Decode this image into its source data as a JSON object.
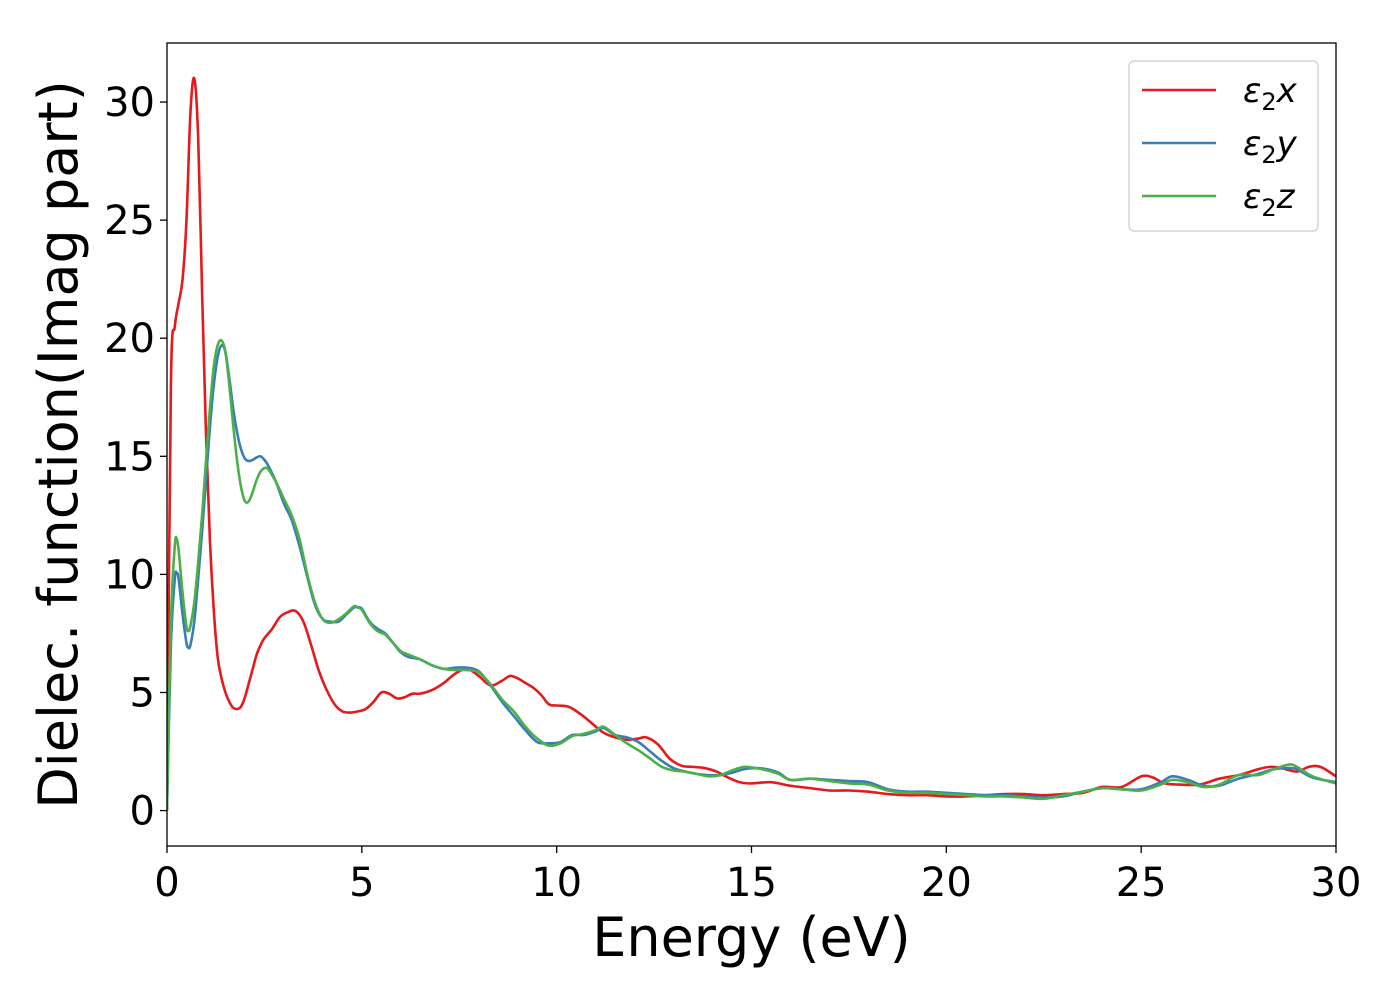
{
  "chart_data": {
    "type": "line",
    "xlabel": "Energy (eV)",
    "ylabel": "Dielec. function(Imag part)",
    "xlim": [
      0,
      30
    ],
    "ylim": [
      -1.5,
      32.5
    ],
    "xticks": [
      0,
      5,
      10,
      15,
      20,
      25,
      30
    ],
    "yticks": [
      0,
      5,
      10,
      15,
      20,
      25,
      30
    ],
    "grid": false,
    "legend_position": "top-right",
    "series": [
      {
        "name": "ε2x",
        "legend": {
          "base": "ε",
          "sub": "2",
          "suffix": "x"
        },
        "color": "#e41a1c",
        "x": [
          0,
          0.1,
          0.2,
          0.3,
          0.4,
          0.5,
          0.6,
          0.7,
          0.8,
          0.9,
          1.0,
          1.1,
          1.2,
          1.3,
          1.4,
          1.5,
          1.6,
          1.7,
          1.8,
          1.9,
          2.0,
          2.1,
          2.2,
          2.3,
          2.4,
          2.5,
          2.7,
          2.9,
          3.1,
          3.3,
          3.5,
          3.7,
          3.9,
          4.1,
          4.3,
          4.5,
          4.7,
          4.9,
          5.1,
          5.3,
          5.5,
          5.7,
          5.9,
          6.1,
          6.3,
          6.5,
          6.8,
          7.1,
          7.4,
          7.7,
          8.0,
          8.3,
          8.6,
          8.8,
          9.0,
          9.2,
          9.4,
          9.6,
          9.8,
          10.0,
          10.3,
          10.6,
          10.9,
          11.2,
          11.5,
          11.8,
          12.1,
          12.3,
          12.6,
          12.9,
          13.2,
          13.5,
          13.8,
          14.1,
          14.4,
          14.7,
          15.0,
          15.5,
          16.0,
          16.5,
          17.0,
          17.5,
          18.0,
          18.5,
          19.0,
          19.5,
          20.0,
          20.5,
          21.0,
          21.5,
          22.0,
          22.5,
          23.0,
          23.5,
          24.0,
          24.5,
          25.0,
          25.3,
          25.6,
          26.0,
          26.5,
          27.0,
          27.5,
          28.0,
          28.3,
          28.6,
          29.0,
          29.3,
          29.6,
          30.0
        ],
        "y": [
          0,
          18.0,
          20.5,
          21.5,
          22.5,
          25.0,
          29.5,
          31.0,
          28.5,
          22.0,
          16.0,
          11.5,
          8.5,
          6.5,
          5.6,
          5.0,
          4.6,
          4.35,
          4.3,
          4.4,
          4.8,
          5.4,
          6.0,
          6.6,
          7.0,
          7.3,
          7.7,
          8.2,
          8.4,
          8.45,
          8.0,
          7.0,
          5.9,
          5.1,
          4.5,
          4.2,
          4.15,
          4.2,
          4.3,
          4.6,
          5.0,
          4.95,
          4.75,
          4.8,
          4.95,
          4.95,
          5.1,
          5.4,
          5.8,
          6.0,
          5.7,
          5.3,
          5.5,
          5.7,
          5.6,
          5.4,
          5.2,
          4.9,
          4.5,
          4.45,
          4.4,
          4.1,
          3.7,
          3.3,
          3.1,
          3.0,
          3.05,
          3.1,
          2.8,
          2.2,
          1.9,
          1.85,
          1.8,
          1.65,
          1.4,
          1.2,
          1.15,
          1.2,
          1.05,
          0.95,
          0.85,
          0.85,
          0.8,
          0.7,
          0.65,
          0.65,
          0.6,
          0.6,
          0.65,
          0.7,
          0.7,
          0.65,
          0.7,
          0.75,
          1.0,
          1.0,
          1.45,
          1.4,
          1.15,
          1.1,
          1.1,
          1.35,
          1.5,
          1.75,
          1.85,
          1.8,
          1.65,
          1.85,
          1.85,
          1.45
        ]
      },
      {
        "name": "ε2y",
        "legend": {
          "base": "ε",
          "sub": "2",
          "suffix": "y"
        },
        "color": "#377eb8",
        "x": [
          0,
          0.1,
          0.2,
          0.25,
          0.3,
          0.4,
          0.5,
          0.55,
          0.6,
          0.7,
          0.8,
          0.9,
          1.0,
          1.1,
          1.2,
          1.3,
          1.4,
          1.5,
          1.6,
          1.7,
          1.8,
          1.9,
          2.0,
          2.1,
          2.2,
          2.3,
          2.4,
          2.5,
          2.6,
          2.8,
          3.0,
          3.2,
          3.4,
          3.6,
          3.8,
          4.0,
          4.2,
          4.4,
          4.6,
          4.8,
          4.9,
          5.0,
          5.2,
          5.4,
          5.6,
          5.8,
          6.0,
          6.2,
          6.5,
          6.8,
          7.1,
          7.4,
          7.7,
          8.0,
          8.3,
          8.6,
          8.9,
          9.2,
          9.5,
          9.8,
          10.1,
          10.4,
          10.7,
          11.0,
          11.2,
          11.5,
          11.8,
          12.1,
          12.4,
          12.7,
          13.0,
          13.3,
          13.6,
          13.9,
          14.2,
          14.5,
          14.8,
          15.1,
          15.4,
          15.7,
          16.0,
          16.5,
          17.0,
          17.5,
          18.0,
          18.5,
          19.0,
          19.5,
          20.0,
          20.5,
          21.0,
          21.5,
          22.0,
          22.5,
          23.0,
          23.5,
          24.0,
          24.5,
          25.0,
          25.5,
          25.8,
          26.2,
          26.6,
          27.0,
          27.5,
          28.0,
          28.4,
          28.8,
          29.0,
          29.4,
          30.0
        ],
        "y": [
          0,
          7.0,
          9.8,
          10.05,
          9.8,
          8.3,
          7.1,
          6.9,
          7.0,
          8.0,
          9.8,
          11.8,
          14.0,
          16.2,
          18.0,
          19.2,
          19.7,
          19.4,
          18.3,
          17.0,
          16.0,
          15.3,
          14.9,
          14.8,
          14.85,
          14.95,
          15.0,
          14.85,
          14.6,
          13.9,
          13.0,
          12.3,
          11.2,
          9.9,
          8.7,
          8.1,
          8.0,
          8.0,
          8.3,
          8.6,
          8.6,
          8.55,
          8.0,
          7.7,
          7.5,
          7.1,
          6.7,
          6.5,
          6.4,
          6.15,
          6.0,
          6.05,
          6.05,
          5.9,
          5.3,
          4.6,
          4.0,
          3.4,
          2.9,
          2.85,
          2.9,
          3.2,
          3.2,
          3.35,
          3.5,
          3.2,
          3.1,
          2.9,
          2.5,
          2.1,
          1.8,
          1.65,
          1.55,
          1.5,
          1.5,
          1.6,
          1.75,
          1.8,
          1.75,
          1.6,
          1.3,
          1.35,
          1.3,
          1.25,
          1.2,
          0.9,
          0.8,
          0.8,
          0.75,
          0.7,
          0.65,
          0.65,
          0.6,
          0.55,
          0.6,
          0.8,
          0.95,
          0.9,
          0.9,
          1.2,
          1.45,
          1.3,
          1.05,
          1.05,
          1.35,
          1.55,
          1.75,
          1.8,
          1.75,
          1.4,
          1.2
        ]
      },
      {
        "name": "ε2z",
        "legend": {
          "base": "ε",
          "sub": "2",
          "suffix": "z"
        },
        "color": "#4daf4a",
        "x": [
          0,
          0.1,
          0.2,
          0.25,
          0.3,
          0.4,
          0.5,
          0.55,
          0.6,
          0.7,
          0.8,
          0.9,
          1.0,
          1.1,
          1.2,
          1.3,
          1.4,
          1.5,
          1.6,
          1.7,
          1.8,
          1.9,
          2.0,
          2.1,
          2.2,
          2.3,
          2.4,
          2.5,
          2.6,
          2.8,
          3.0,
          3.2,
          3.4,
          3.6,
          3.8,
          4.0,
          4.2,
          4.4,
          4.6,
          4.8,
          4.9,
          5.0,
          5.2,
          5.4,
          5.6,
          5.8,
          6.0,
          6.2,
          6.5,
          6.8,
          7.1,
          7.4,
          7.7,
          8.0,
          8.3,
          8.6,
          8.9,
          9.2,
          9.5,
          9.8,
          10.1,
          10.4,
          10.7,
          11.0,
          11.2,
          11.5,
          11.8,
          12.1,
          12.4,
          12.7,
          13.0,
          13.3,
          13.6,
          13.9,
          14.2,
          14.5,
          14.8,
          15.1,
          15.4,
          15.7,
          16.0,
          16.5,
          17.0,
          17.5,
          18.0,
          18.5,
          19.0,
          19.5,
          20.0,
          20.5,
          21.0,
          21.5,
          22.0,
          22.5,
          23.0,
          23.5,
          24.0,
          24.5,
          25.0,
          25.5,
          25.8,
          26.2,
          26.6,
          27.0,
          27.5,
          28.0,
          28.4,
          28.8,
          29.0,
          29.4,
          30.0
        ],
        "y": [
          0,
          8.0,
          11.2,
          11.5,
          11.0,
          9.2,
          7.8,
          7.6,
          7.8,
          8.8,
          10.5,
          12.5,
          14.8,
          17.0,
          18.8,
          19.7,
          19.9,
          19.4,
          18.0,
          16.3,
          14.8,
          13.7,
          13.1,
          13.1,
          13.5,
          14.0,
          14.35,
          14.5,
          14.45,
          13.9,
          13.2,
          12.5,
          11.5,
          10.0,
          8.8,
          8.1,
          7.95,
          8.1,
          8.35,
          8.65,
          8.6,
          8.5,
          7.95,
          7.6,
          7.45,
          7.1,
          6.75,
          6.6,
          6.4,
          6.15,
          6.0,
          5.95,
          5.95,
          5.85,
          5.35,
          4.7,
          4.2,
          3.55,
          3.05,
          2.75,
          2.85,
          3.15,
          3.25,
          3.4,
          3.55,
          3.2,
          2.85,
          2.55,
          2.2,
          1.85,
          1.7,
          1.65,
          1.55,
          1.45,
          1.5,
          1.7,
          1.85,
          1.8,
          1.7,
          1.55,
          1.3,
          1.35,
          1.25,
          1.15,
          1.1,
          0.85,
          0.75,
          0.75,
          0.7,
          0.65,
          0.6,
          0.6,
          0.55,
          0.5,
          0.65,
          0.8,
          0.95,
          0.9,
          0.85,
          1.1,
          1.3,
          1.2,
          1.0,
          1.1,
          1.5,
          1.5,
          1.75,
          1.95,
          1.85,
          1.45,
          1.15
        ]
      }
    ]
  }
}
